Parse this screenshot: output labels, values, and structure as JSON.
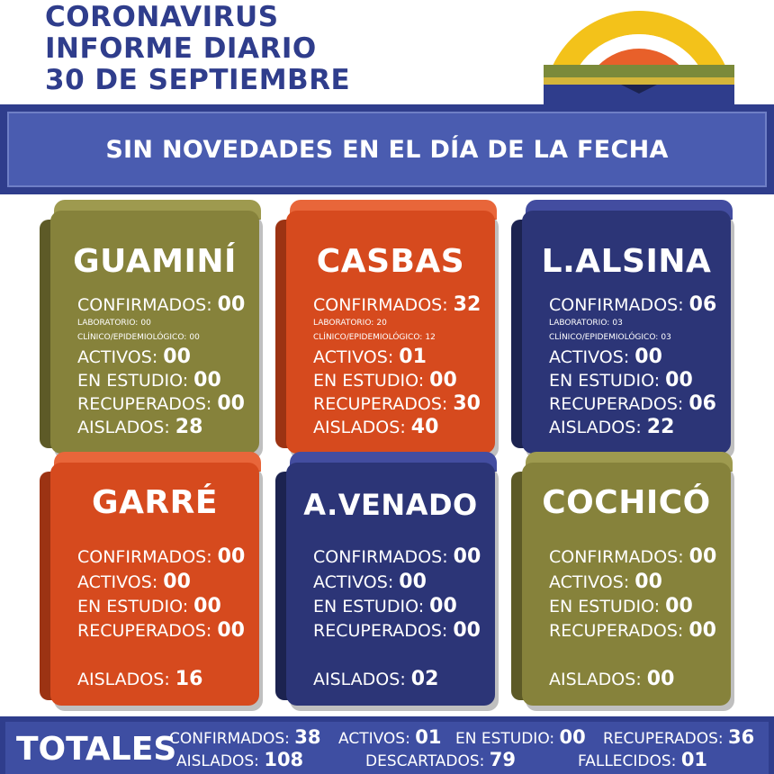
{
  "header": {
    "title_lines": [
      "CORONAVIRUS",
      "INFORME DIARIO",
      "30 DE SEPTIEMBRE"
    ]
  },
  "banner": {
    "text": "SIN NOVEDADES EN EL DÍA DE LA FECHA"
  },
  "labels": {
    "confirmados": "CONFIRMADOS:",
    "laboratorio": "LABORATORIO:",
    "clinico": "CLÍNICO/EPIDEMIOLÓGICO:",
    "activos": "ACTIVOS:",
    "en_estudio": "EN ESTUDIO:",
    "recuperados": "RECUPERADOS:",
    "aislados": "AISLADOS:"
  },
  "cards": [
    {
      "name": "GUAMINÍ",
      "color": "#86823b",
      "confirmados": "00",
      "laboratorio": "00",
      "clinico": "00",
      "activos": "00",
      "en_estudio": "00",
      "recuperados": "00",
      "aislados": "28"
    },
    {
      "name": "CASBAS",
      "color": "#d64a1e",
      "confirmados": "32",
      "laboratorio": "20",
      "clinico": "12",
      "activos": "01",
      "en_estudio": "00",
      "recuperados": "30",
      "aislados": "40"
    },
    {
      "name": "L.ALSINA",
      "color": "#2c3577",
      "confirmados": "06",
      "laboratorio": "03",
      "clinico": "03",
      "activos": "00",
      "en_estudio": "00",
      "recuperados": "06",
      "aislados": "22"
    },
    {
      "name": "GARRÉ",
      "color": "#d64a1e",
      "confirmados": "00",
      "activos": "00",
      "en_estudio": "00",
      "recuperados": "00",
      "aislados": "16"
    },
    {
      "name": "A.VENADO",
      "color": "#2c3577",
      "confirmados": "00",
      "activos": "00",
      "en_estudio": "00",
      "recuperados": "00",
      "aislados": "02"
    },
    {
      "name": "COCHICÓ",
      "color": "#86823b",
      "confirmados": "00",
      "activos": "00",
      "en_estudio": "00",
      "recuperados": "00",
      "aislados": "00"
    }
  ],
  "totals": {
    "label": "TOTALES",
    "confirmados_label": "CONFIRMADOS:",
    "confirmados": "38",
    "activos_label": "ACTIVOS:",
    "activos": "01",
    "en_estudio_label": "EN ESTUDIO:",
    "en_estudio": "00",
    "recuperados_label": "RECUPERADOS:",
    "recuperados": "36",
    "aislados_label": "AISLADOS:",
    "aislados": "108",
    "descartados_label": "DESCARTADOS:",
    "descartados": "79",
    "fallecidos_label": "FALLECIDOS:",
    "fallecidos": "01"
  },
  "logo": {
    "icon": "rainbow-logo-icon",
    "colors": [
      "#f3c21a",
      "#e8602a",
      "#7b8a3a",
      "#2f3d8c"
    ]
  }
}
